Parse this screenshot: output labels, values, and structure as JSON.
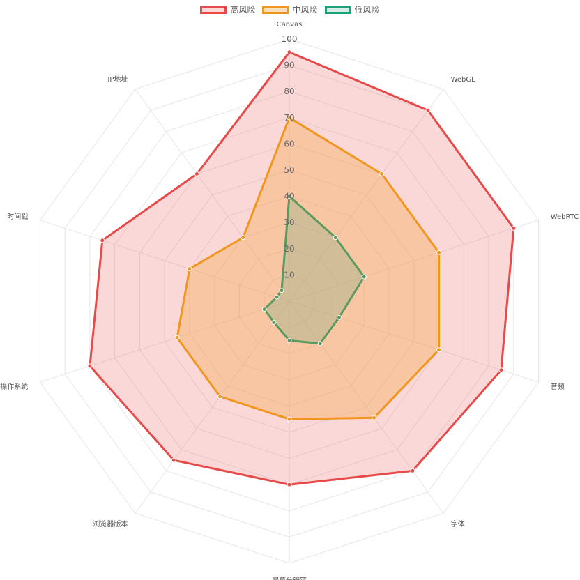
{
  "chart_data": {
    "type": "radar",
    "categories": [
      "Canvas",
      "WebGL",
      "WebRTC",
      "音频",
      "字体",
      "屏幕分辨率",
      "浏览器版本",
      "操作系统",
      "时间戳",
      "IP地址"
    ],
    "series": [
      {
        "name": "高风险",
        "values": [
          95,
          90,
          90,
          85,
          80,
          70,
          75,
          80,
          75,
          60
        ],
        "color": "#e84a4a",
        "fill": "rgba(240,100,100,0.25)"
      },
      {
        "name": "中风险",
        "values": [
          70,
          60,
          60,
          60,
          55,
          45,
          45,
          45,
          40,
          30
        ],
        "color": "#f0961e",
        "fill": "rgba(245,165,70,0.35)"
      },
      {
        "name": "低风险",
        "values": [
          40,
          30,
          30,
          20,
          20,
          15,
          10,
          10,
          5,
          5
        ],
        "color": "#5a9a5e",
        "fill": "rgba(120,170,130,0.30)",
        "legend_color": "#1aa37a"
      }
    ],
    "rmin": 0,
    "rmax": 100,
    "ticks": [
      10,
      20,
      30,
      40,
      50,
      60,
      70,
      80,
      90,
      100
    ],
    "grid": true,
    "legend_position": "top-center"
  }
}
